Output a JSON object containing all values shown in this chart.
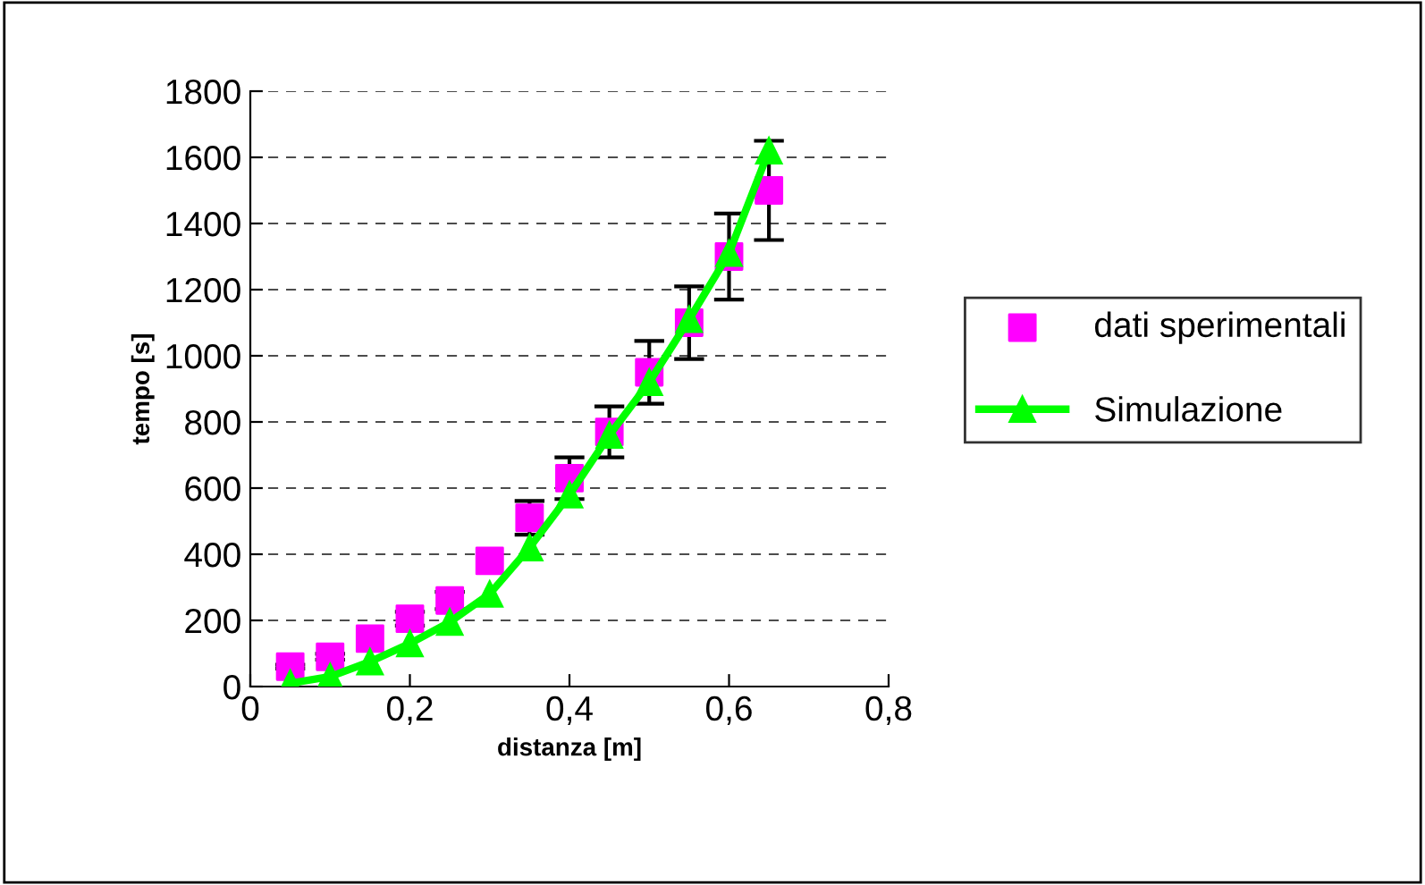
{
  "chart_data": {
    "type": "scatter",
    "xlabel": "distanza [m]",
    "ylabel": "tempo [s]",
    "x": [
      0.05,
      0.1,
      0.15,
      0.2,
      0.25,
      0.3,
      0.35,
      0.4,
      0.45,
      0.5,
      0.55,
      0.6,
      0.65
    ],
    "series": [
      {
        "name": "dati sperimentali",
        "color": "#ff00ff",
        "marker": "square",
        "values": [
          60,
          90,
          145,
          205,
          260,
          380,
          510,
          630,
          770,
          950,
          1100,
          1300,
          1500
        ],
        "errors": [
          6,
          9,
          null,
          21,
          26,
          null,
          51,
          63,
          77,
          95,
          110,
          130,
          150
        ]
      },
      {
        "name": "Simulazione",
        "type": "line",
        "color": "#00ff00",
        "marker": "triangle",
        "line_style": "solid",
        "values": [
          10,
          30,
          75,
          130,
          195,
          280,
          420,
          580,
          760,
          920,
          1110,
          1310,
          1620
        ]
      }
    ],
    "xlim": [
      0,
      0.8
    ],
    "xticks": [
      {
        "value": 0,
        "label": "0"
      },
      {
        "value": 0.2,
        "label": "0,2"
      },
      {
        "value": 0.4,
        "label": "0,4"
      },
      {
        "value": 0.6,
        "label": "0,6"
      },
      {
        "value": 0.8,
        "label": "0,8"
      }
    ],
    "ylim": [
      0,
      1800
    ],
    "yticks": [
      0,
      200,
      400,
      600,
      800,
      1000,
      1200,
      1400,
      1600,
      1800
    ],
    "grid": "y",
    "legend": "right"
  }
}
